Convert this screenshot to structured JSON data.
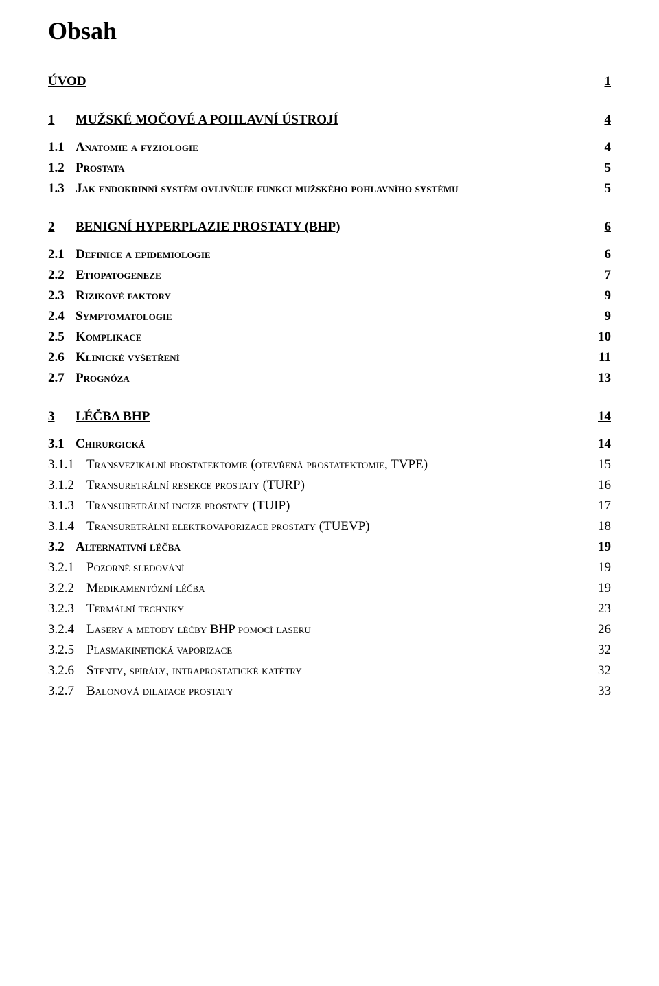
{
  "title": "Obsah",
  "uvod": {
    "num": "",
    "label": "ÚVOD",
    "page": "1"
  },
  "sections": [
    {
      "num": "1",
      "label": "MUŽSKÉ MOČOVÉ A POHLAVNÍ ÚSTROJÍ",
      "page": "4",
      "items_l2": [
        {
          "num": "1.1",
          "label": "Anatomie a fyziologie",
          "page": "4"
        },
        {
          "num": "1.2",
          "label": "Prostata",
          "page": "5"
        },
        {
          "num": "1.3",
          "label": "Jak endokrinní systém ovlivňuje funkci mužského pohlavního systému",
          "page": "5"
        }
      ],
      "items_l3": []
    },
    {
      "num": "2",
      "label": "BENIGNÍ HYPERPLAZIE PROSTATY (BHP)",
      "page": "6",
      "items_l2": [
        {
          "num": "2.1",
          "label": "Definice a epidemiologie",
          "page": "6"
        },
        {
          "num": "2.2",
          "label": "Etiopatogeneze",
          "page": "7"
        },
        {
          "num": "2.3",
          "label": "Rizikové faktory",
          "page": "9"
        },
        {
          "num": "2.4",
          "label": "Symptomatologie",
          "page": "9"
        },
        {
          "num": "2.5",
          "label": "Komplikace",
          "page": "10"
        },
        {
          "num": "2.6",
          "label": "Klinické vyšetření",
          "page": "11"
        },
        {
          "num": "2.7",
          "label": "Prognóza",
          "page": "13"
        }
      ],
      "items_l3": []
    },
    {
      "num": "3",
      "label": "LÉČBA BHP",
      "page": "14",
      "mixed": [
        {
          "level": 2,
          "num": "3.1",
          "label": "Chirurgická",
          "page": "14"
        },
        {
          "level": 3,
          "num": "3.1.1",
          "label": "Transvezikální prostatektomie (otevřená prostatektomie, TVPE)",
          "page": "15"
        },
        {
          "level": 3,
          "num": "3.1.2",
          "label": "Transuretrální resekce prostaty (TURP)",
          "page": "16"
        },
        {
          "level": 3,
          "num": "3.1.3",
          "label": "Transuretrální incize prostaty (TUIP)",
          "page": "17"
        },
        {
          "level": 3,
          "num": "3.1.4",
          "label": "Transuretrální elektrovaporizace prostaty (TUEVP)",
          "page": "18"
        },
        {
          "level": 2,
          "num": "3.2",
          "label": "Alternativní léčba",
          "page": "19"
        },
        {
          "level": 3,
          "num": "3.2.1",
          "label": "Pozorné sledování",
          "page": "19"
        },
        {
          "level": 3,
          "num": "3.2.2",
          "label": "Medikamentózní léčba",
          "page": "19"
        },
        {
          "level": 3,
          "num": "3.2.3",
          "label": "Termální techniky",
          "page": "23"
        },
        {
          "level": 3,
          "num": "3.2.4",
          "label": "Lasery a metody léčby BHP pomocí laseru",
          "page": "26"
        },
        {
          "level": 3,
          "num": "3.2.5",
          "label": "Plasmakinetická vaporizace",
          "page": "32"
        },
        {
          "level": 3,
          "num": "3.2.6",
          "label": "Stenty, spirály, intraprostatické katétry",
          "page": "32"
        },
        {
          "level": 3,
          "num": "3.2.7",
          "label": "Balonová dilatace prostaty",
          "page": "33"
        }
      ]
    }
  ]
}
